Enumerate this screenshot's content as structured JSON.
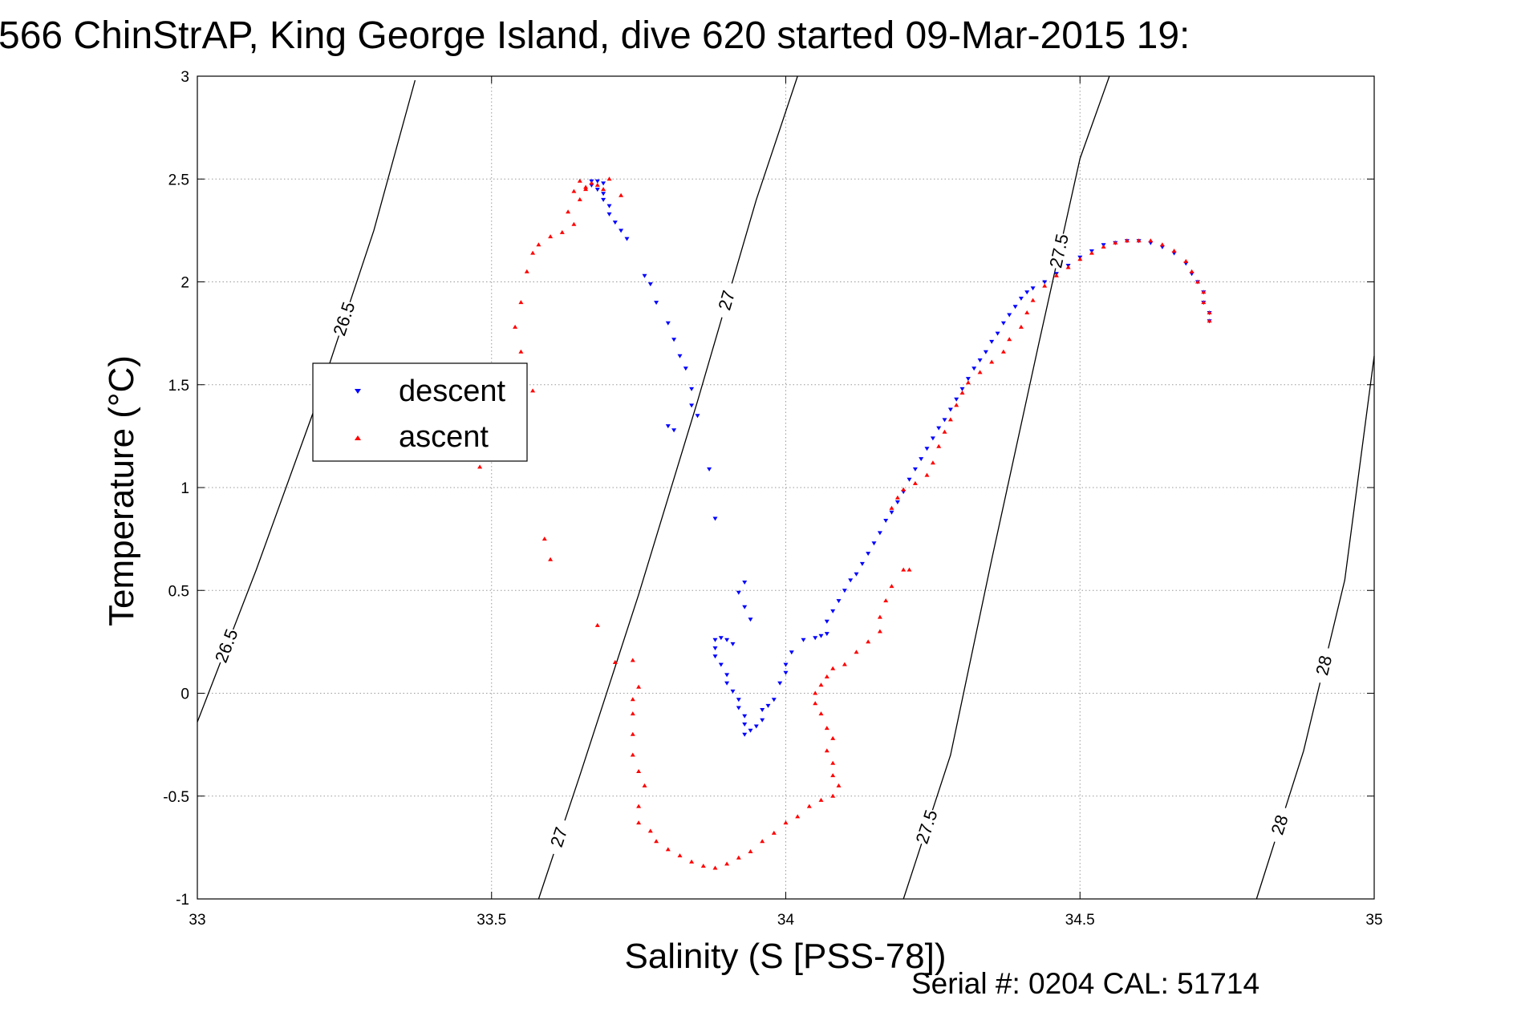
{
  "chart_data": {
    "type": "scatter",
    "title": "566 ChinStrAP, King George Island, dive 620 started 09-Mar-2015 19:",
    "xlabel": "Salinity (S [PSS-78])",
    "ylabel": "Temperature (°C)",
    "footer": "Serial #: 0204  CAL: 51714",
    "xlim": [
      33,
      35
    ],
    "ylim": [
      -1,
      3
    ],
    "xticks": [
      33,
      33.5,
      34,
      34.5,
      35
    ],
    "xtick_labels": [
      "33",
      "33.5",
      "34",
      "34.5",
      "35"
    ],
    "yticks": [
      -1,
      -0.5,
      0,
      0.5,
      1,
      1.5,
      2,
      2.5,
      3
    ],
    "ytick_labels": [
      "-1",
      "-0.5",
      "0",
      "0.5",
      "1",
      "1.5",
      "2",
      "2.5",
      "3"
    ],
    "grid": true,
    "legend_position": "left",
    "series": [
      {
        "name": "descent",
        "color": "#0000ff",
        "marker": "triangle-down",
        "points": [
          [
            33.67,
            2.49
          ],
          [
            33.68,
            2.49
          ],
          [
            33.69,
            2.48
          ],
          [
            33.67,
            2.47
          ],
          [
            33.68,
            2.45
          ],
          [
            33.69,
            2.43
          ],
          [
            33.69,
            2.4
          ],
          [
            33.7,
            2.37
          ],
          [
            33.7,
            2.33
          ],
          [
            33.71,
            2.29
          ],
          [
            33.72,
            2.25
          ],
          [
            33.73,
            2.21
          ],
          [
            33.76,
            2.03
          ],
          [
            33.77,
            1.99
          ],
          [
            33.78,
            1.9
          ],
          [
            33.8,
            1.8
          ],
          [
            33.81,
            1.72
          ],
          [
            33.82,
            1.64
          ],
          [
            33.83,
            1.58
          ],
          [
            33.84,
            1.48
          ],
          [
            33.84,
            1.4
          ],
          [
            33.85,
            1.35
          ],
          [
            33.8,
            1.3
          ],
          [
            33.81,
            1.28
          ],
          [
            33.87,
            1.09
          ],
          [
            33.88,
            0.85
          ],
          [
            33.93,
            0.54
          ],
          [
            33.92,
            0.49
          ],
          [
            33.93,
            0.42
          ],
          [
            33.94,
            0.36
          ],
          [
            33.88,
            0.26
          ],
          [
            33.89,
            0.27
          ],
          [
            33.9,
            0.26
          ],
          [
            33.91,
            0.24
          ],
          [
            33.88,
            0.22
          ],
          [
            33.88,
            0.18
          ],
          [
            33.89,
            0.14
          ],
          [
            33.9,
            0.09
          ],
          [
            33.9,
            0.05
          ],
          [
            33.91,
            0.01
          ],
          [
            33.92,
            -0.03
          ],
          [
            33.92,
            -0.07
          ],
          [
            33.93,
            -0.11
          ],
          [
            33.93,
            -0.15
          ],
          [
            33.94,
            -0.18
          ],
          [
            33.93,
            -0.2
          ],
          [
            33.95,
            -0.16
          ],
          [
            33.96,
            -0.13
          ],
          [
            33.96,
            -0.08
          ],
          [
            33.97,
            -0.06
          ],
          [
            33.98,
            -0.03
          ],
          [
            33.99,
            0.05
          ],
          [
            34.0,
            0.1
          ],
          [
            34.0,
            0.14
          ],
          [
            34.01,
            0.2
          ],
          [
            34.03,
            0.26
          ],
          [
            34.05,
            0.27
          ],
          [
            34.06,
            0.28
          ],
          [
            34.07,
            0.29
          ],
          [
            34.07,
            0.35
          ],
          [
            34.08,
            0.4
          ],
          [
            34.09,
            0.45
          ],
          [
            34.1,
            0.5
          ],
          [
            34.11,
            0.55
          ],
          [
            34.12,
            0.58
          ],
          [
            34.13,
            0.63
          ],
          [
            34.14,
            0.68
          ],
          [
            34.15,
            0.73
          ],
          [
            34.16,
            0.78
          ],
          [
            34.17,
            0.84
          ],
          [
            34.18,
            0.88
          ],
          [
            34.19,
            0.93
          ],
          [
            34.2,
            0.98
          ],
          [
            34.21,
            1.04
          ],
          [
            34.22,
            1.09
          ],
          [
            34.23,
            1.14
          ],
          [
            34.24,
            1.19
          ],
          [
            34.25,
            1.24
          ],
          [
            34.26,
            1.29
          ],
          [
            34.27,
            1.33
          ],
          [
            34.28,
            1.38
          ],
          [
            34.29,
            1.43
          ],
          [
            34.3,
            1.48
          ],
          [
            34.31,
            1.53
          ],
          [
            34.32,
            1.58
          ],
          [
            34.33,
            1.62
          ],
          [
            34.34,
            1.66
          ],
          [
            34.35,
            1.71
          ],
          [
            34.36,
            1.75
          ],
          [
            34.37,
            1.8
          ],
          [
            34.38,
            1.84
          ],
          [
            34.39,
            1.88
          ],
          [
            34.4,
            1.92
          ],
          [
            34.41,
            1.95
          ],
          [
            34.42,
            1.97
          ],
          [
            34.44,
            2.0
          ],
          [
            34.46,
            2.04
          ],
          [
            34.48,
            2.08
          ],
          [
            34.5,
            2.12
          ],
          [
            34.52,
            2.15
          ],
          [
            34.54,
            2.18
          ],
          [
            34.56,
            2.19
          ],
          [
            34.58,
            2.2
          ],
          [
            34.6,
            2.2
          ],
          [
            34.62,
            2.19
          ],
          [
            34.64,
            2.17
          ],
          [
            34.66,
            2.14
          ],
          [
            34.68,
            2.09
          ],
          [
            34.69,
            2.04
          ],
          [
            34.7,
            2.0
          ],
          [
            34.71,
            1.95
          ],
          [
            34.71,
            1.9
          ],
          [
            34.72,
            1.85
          ],
          [
            34.72,
            1.81
          ]
        ]
      },
      {
        "name": "ascent",
        "color": "#ff0000",
        "marker": "triangle-up",
        "points": [
          [
            34.72,
            1.81
          ],
          [
            34.72,
            1.85
          ],
          [
            34.71,
            1.9
          ],
          [
            34.71,
            1.95
          ],
          [
            34.7,
            2.0
          ],
          [
            34.69,
            2.05
          ],
          [
            34.68,
            2.1
          ],
          [
            34.66,
            2.15
          ],
          [
            34.64,
            2.18
          ],
          [
            34.62,
            2.2
          ],
          [
            34.6,
            2.2
          ],
          [
            34.58,
            2.2
          ],
          [
            34.56,
            2.19
          ],
          [
            34.54,
            2.17
          ],
          [
            34.52,
            2.14
          ],
          [
            34.5,
            2.11
          ],
          [
            34.48,
            2.07
          ],
          [
            34.46,
            2.03
          ],
          [
            34.44,
            1.98
          ],
          [
            34.42,
            1.91
          ],
          [
            34.41,
            1.85
          ],
          [
            34.4,
            1.78
          ],
          [
            34.38,
            1.72
          ],
          [
            34.37,
            1.66
          ],
          [
            34.35,
            1.61
          ],
          [
            34.33,
            1.56
          ],
          [
            34.31,
            1.51
          ],
          [
            34.3,
            1.46
          ],
          [
            34.29,
            1.4
          ],
          [
            34.28,
            1.33
          ],
          [
            34.27,
            1.27
          ],
          [
            34.26,
            1.2
          ],
          [
            34.25,
            1.12
          ],
          [
            34.24,
            1.06
          ],
          [
            34.22,
            1.02
          ],
          [
            34.2,
            0.99
          ],
          [
            34.19,
            0.95
          ],
          [
            34.18,
            0.9
          ],
          [
            34.2,
            0.6
          ],
          [
            34.21,
            0.6
          ],
          [
            34.18,
            0.52
          ],
          [
            34.17,
            0.45
          ],
          [
            34.16,
            0.37
          ],
          [
            34.16,
            0.3
          ],
          [
            34.14,
            0.25
          ],
          [
            34.12,
            0.2
          ],
          [
            34.1,
            0.14
          ],
          [
            34.08,
            0.12
          ],
          [
            34.07,
            0.08
          ],
          [
            34.06,
            0.04
          ],
          [
            34.05,
            0.0
          ],
          [
            34.05,
            -0.05
          ],
          [
            34.06,
            -0.1
          ],
          [
            34.07,
            -0.17
          ],
          [
            34.08,
            -0.22
          ],
          [
            34.07,
            -0.28
          ],
          [
            34.08,
            -0.34
          ],
          [
            34.08,
            -0.4
          ],
          [
            34.09,
            -0.45
          ],
          [
            34.08,
            -0.5
          ],
          [
            34.06,
            -0.52
          ],
          [
            34.04,
            -0.55
          ],
          [
            34.02,
            -0.6
          ],
          [
            34.0,
            -0.63
          ],
          [
            33.98,
            -0.68
          ],
          [
            33.96,
            -0.72
          ],
          [
            33.94,
            -0.77
          ],
          [
            33.92,
            -0.8
          ],
          [
            33.9,
            -0.83
          ],
          [
            33.88,
            -0.85
          ],
          [
            33.86,
            -0.84
          ],
          [
            33.84,
            -0.82
          ],
          [
            33.82,
            -0.79
          ],
          [
            33.8,
            -0.76
          ],
          [
            33.78,
            -0.72
          ],
          [
            33.77,
            -0.67
          ],
          [
            33.75,
            -0.63
          ],
          [
            33.75,
            -0.55
          ],
          [
            33.76,
            -0.45
          ],
          [
            33.75,
            -0.38
          ],
          [
            33.74,
            -0.3
          ],
          [
            33.74,
            -0.2
          ],
          [
            33.74,
            -0.1
          ],
          [
            33.74,
            -0.03
          ],
          [
            33.75,
            0.03
          ],
          [
            33.74,
            0.16
          ],
          [
            33.71,
            0.15
          ],
          [
            33.68,
            0.33
          ],
          [
            33.6,
            0.65
          ],
          [
            33.59,
            0.75
          ],
          [
            33.48,
            1.1
          ],
          [
            33.57,
            1.47
          ],
          [
            33.55,
            1.66
          ],
          [
            33.54,
            1.78
          ],
          [
            33.55,
            1.9
          ],
          [
            33.56,
            2.05
          ],
          [
            33.57,
            2.14
          ],
          [
            33.58,
            2.18
          ],
          [
            33.6,
            2.22
          ],
          [
            33.62,
            2.24
          ],
          [
            33.64,
            2.28
          ],
          [
            33.63,
            2.34
          ],
          [
            33.65,
            2.4
          ],
          [
            33.64,
            2.44
          ],
          [
            33.66,
            2.46
          ],
          [
            33.67,
            2.48
          ],
          [
            33.68,
            2.47
          ],
          [
            33.69,
            2.45
          ],
          [
            33.7,
            2.5
          ],
          [
            33.72,
            2.42
          ],
          [
            33.65,
            2.49
          ],
          [
            33.66,
            2.45
          ]
        ]
      }
    ],
    "isopycnals": [
      {
        "label": "26.5",
        "points": [
          [
            33.0,
            -0.14
          ],
          [
            33.1,
            0.6
          ],
          [
            33.2,
            1.39
          ],
          [
            33.3,
            2.25
          ],
          [
            33.37,
            2.98
          ]
        ]
      },
      {
        "label": "27",
        "points": [
          [
            33.58,
            -1.0
          ],
          [
            33.65,
            -0.4
          ],
          [
            33.75,
            0.48
          ],
          [
            33.85,
            1.42
          ],
          [
            33.95,
            2.4
          ],
          [
            34.02,
            3.0
          ]
        ]
      },
      {
        "label": "27.5",
        "points": [
          [
            34.2,
            -1.0
          ],
          [
            34.28,
            -0.3
          ],
          [
            34.35,
            0.65
          ],
          [
            34.43,
            1.7
          ],
          [
            34.5,
            2.6
          ],
          [
            34.55,
            3.0
          ]
        ]
      },
      {
        "label": "28",
        "points": [
          [
            34.8,
            -1.0
          ],
          [
            34.88,
            -0.28
          ],
          [
            34.95,
            0.55
          ],
          [
            35.0,
            1.64
          ]
        ]
      }
    ]
  }
}
